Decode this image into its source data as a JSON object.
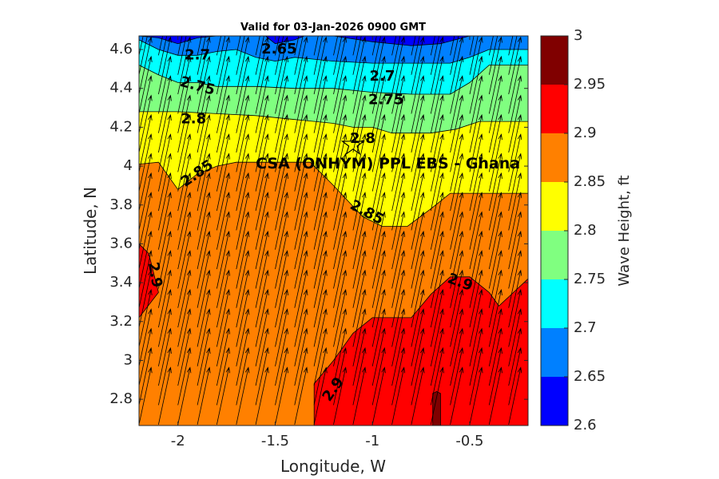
{
  "chart_data": {
    "type": "filled-contour",
    "title": "Valid for 03-Jan-2026 0900 GMT",
    "xlabel": "Longitude, W",
    "ylabel": "Latitude, N",
    "xlim": [
      -2.2,
      -0.2
    ],
    "ylim": [
      2.665,
      4.67
    ],
    "xticks": [
      -2,
      -1.5,
      -1,
      -0.5
    ],
    "xtick_labels": [
      "-2",
      "-1.5",
      "-1",
      "-0.5"
    ],
    "yticks": [
      2.8,
      3,
      3.2,
      3.4,
      3.6,
      3.8,
      4,
      4.2,
      4.4,
      4.6
    ],
    "ytick_labels": [
      "2.8",
      "3",
      "3.2",
      "3.4",
      "3.6",
      "3.8",
      "4",
      "4.2",
      "4.4",
      "4.6"
    ],
    "colorbar": {
      "label": "Wave Height, ft",
      "range": [
        2.6,
        3.0
      ],
      "ticks": [
        2.6,
        2.65,
        2.7,
        2.75,
        2.8,
        2.85,
        2.9,
        2.95,
        3
      ],
      "tick_labels": [
        "2.6",
        "2.65",
        "2.7",
        "2.75",
        "2.8",
        "2.85",
        "2.9",
        "2.95",
        "3"
      ],
      "levels": [
        {
          "min": 2.6,
          "max": 2.65,
          "color": "#0000ff"
        },
        {
          "min": 2.65,
          "max": 2.7,
          "color": "#0080ff"
        },
        {
          "min": 2.7,
          "max": 2.75,
          "color": "#00ffff"
        },
        {
          "min": 2.75,
          "max": 2.8,
          "color": "#80ff80"
        },
        {
          "min": 2.8,
          "max": 2.85,
          "color": "#ffff00"
        },
        {
          "min": 2.85,
          "max": 2.9,
          "color": "#ff8000"
        },
        {
          "min": 2.9,
          "max": 2.95,
          "color": "#ff0000"
        },
        {
          "min": 2.95,
          "max": 3.0,
          "color": "#800000"
        }
      ]
    },
    "regions": [
      {
        "level_min": 2.85,
        "level_max": 2.9,
        "color": "#ff8000",
        "points": [
          [
            -2.2,
            2.665
          ],
          [
            -0.2,
            2.665
          ],
          [
            -0.2,
            4.67
          ],
          [
            -2.2,
            4.67
          ]
        ]
      },
      {
        "level_min": 2.8,
        "level_max": 2.85,
        "color": "#ffff00",
        "points": [
          [
            -2.2,
            4.01
          ],
          [
            -2.1,
            4.02
          ],
          [
            -2.0,
            3.88
          ],
          [
            -1.9,
            3.96
          ],
          [
            -1.8,
            4.0
          ],
          [
            -1.7,
            4.02
          ],
          [
            -1.5,
            4.02
          ],
          [
            -1.32,
            4.02
          ],
          [
            -1.2,
            3.9
          ],
          [
            -1.05,
            3.74
          ],
          [
            -0.95,
            3.69
          ],
          [
            -0.82,
            3.69
          ],
          [
            -0.7,
            3.78
          ],
          [
            -0.6,
            3.86
          ],
          [
            -0.2,
            3.86
          ],
          [
            -0.2,
            4.67
          ],
          [
            -2.2,
            4.67
          ]
        ]
      },
      {
        "level_min": 2.75,
        "level_max": 2.8,
        "color": "#80ff80",
        "points": [
          [
            -2.2,
            4.28
          ],
          [
            -2.0,
            4.28
          ],
          [
            -1.8,
            4.27
          ],
          [
            -1.6,
            4.26
          ],
          [
            -1.4,
            4.24
          ],
          [
            -1.2,
            4.22
          ],
          [
            -1.1,
            4.2
          ],
          [
            -1.0,
            4.2
          ],
          [
            -0.9,
            4.17
          ],
          [
            -0.8,
            4.17
          ],
          [
            -0.7,
            4.17
          ],
          [
            -0.57,
            4.19
          ],
          [
            -0.45,
            4.23
          ],
          [
            -0.2,
            4.23
          ],
          [
            -0.2,
            4.67
          ],
          [
            -2.2,
            4.67
          ]
        ]
      },
      {
        "level_min": 2.7,
        "level_max": 2.75,
        "color": "#00ffff",
        "points": [
          [
            -2.2,
            4.52
          ],
          [
            -2.1,
            4.47
          ],
          [
            -2.0,
            4.43
          ],
          [
            -1.9,
            4.43
          ],
          [
            -1.8,
            4.41
          ],
          [
            -1.6,
            4.41
          ],
          [
            -1.4,
            4.4
          ],
          [
            -1.2,
            4.4
          ],
          [
            -1.0,
            4.38
          ],
          [
            -0.8,
            4.37
          ],
          [
            -0.6,
            4.37
          ],
          [
            -0.5,
            4.43
          ],
          [
            -0.4,
            4.52
          ],
          [
            -0.35,
            4.52
          ],
          [
            -0.2,
            4.52
          ],
          [
            -0.2,
            4.67
          ],
          [
            -2.2,
            4.67
          ]
        ]
      },
      {
        "level_min": 2.65,
        "level_max": 2.7,
        "color": "#0080ff",
        "points": [
          [
            -2.2,
            4.65
          ],
          [
            -2.1,
            4.6
          ],
          [
            -2.0,
            4.57
          ],
          [
            -1.9,
            4.57
          ],
          [
            -1.8,
            4.59
          ],
          [
            -1.7,
            4.6
          ],
          [
            -1.6,
            4.56
          ],
          [
            -1.5,
            4.54
          ],
          [
            -1.4,
            4.56
          ],
          [
            -1.2,
            4.54
          ],
          [
            -1.0,
            4.53
          ],
          [
            -0.8,
            4.53
          ],
          [
            -0.6,
            4.53
          ],
          [
            -0.5,
            4.56
          ],
          [
            -0.4,
            4.6
          ],
          [
            -0.35,
            4.6
          ],
          [
            -0.2,
            4.6
          ],
          [
            -0.2,
            4.67
          ],
          [
            -2.2,
            4.67
          ]
        ]
      },
      {
        "level_min": 2.6,
        "level_max": 2.65,
        "color": "#0000ff",
        "points": [
          [
            -2.2,
            4.67
          ],
          [
            -2.1,
            4.66
          ],
          [
            -2.0,
            4.63
          ],
          [
            -1.9,
            4.66
          ],
          [
            -1.8,
            4.67
          ]
        ]
      },
      {
        "level_min": 2.6,
        "level_max": 2.65,
        "color": "#0000ff",
        "points": [
          [
            -1.55,
            4.67
          ],
          [
            -1.5,
            4.63
          ],
          [
            -1.4,
            4.65
          ],
          [
            -1.35,
            4.67
          ]
        ]
      },
      {
        "level_min": 2.6,
        "level_max": 2.65,
        "color": "#0000ff",
        "points": [
          [
            -1.2,
            4.67
          ],
          [
            -1.0,
            4.64
          ],
          [
            -0.8,
            4.62
          ],
          [
            -0.65,
            4.63
          ],
          [
            -0.5,
            4.67
          ]
        ]
      },
      {
        "level_min": 2.9,
        "level_max": 2.95,
        "color": "#ff0000",
        "points": [
          [
            -1.3,
            2.665
          ],
          [
            -1.3,
            2.88
          ],
          [
            -1.2,
            3.0
          ],
          [
            -1.1,
            3.14
          ],
          [
            -1.0,
            3.22
          ],
          [
            -0.8,
            3.22
          ],
          [
            -0.7,
            3.34
          ],
          [
            -0.6,
            3.43
          ],
          [
            -0.5,
            3.43
          ],
          [
            -0.4,
            3.35
          ],
          [
            -0.35,
            3.28
          ],
          [
            -0.2,
            3.42
          ],
          [
            -0.2,
            2.665
          ]
        ]
      },
      {
        "level_min": 2.9,
        "level_max": 2.95,
        "color": "#ff0000",
        "points": [
          [
            -2.2,
            3.6
          ],
          [
            -2.15,
            3.55
          ],
          [
            -2.1,
            3.35
          ],
          [
            -2.2,
            3.22
          ]
        ]
      },
      {
        "level_min": 2.95,
        "level_max": 3.0,
        "color": "#800000",
        "points": [
          [
            -0.69,
            2.665
          ],
          [
            -0.69,
            2.83
          ],
          [
            -0.67,
            2.84
          ],
          [
            -0.65,
            2.83
          ],
          [
            -0.65,
            2.665
          ]
        ]
      }
    ],
    "contour_labels": [
      {
        "value": "2.65",
        "lon": -1.48,
        "lat": 4.6,
        "rotation": 0
      },
      {
        "value": "2.7",
        "lon": -1.9,
        "lat": 4.57,
        "rotation": 0
      },
      {
        "value": "2.7",
        "lon": -0.95,
        "lat": 4.46,
        "rotation": 0
      },
      {
        "value": "2.75",
        "lon": -1.9,
        "lat": 4.41,
        "rotation": 15
      },
      {
        "value": "2.75",
        "lon": -0.93,
        "lat": 4.34,
        "rotation": 0
      },
      {
        "value": "2.8",
        "lon": -1.92,
        "lat": 4.24,
        "rotation": 0
      },
      {
        "value": "2.8",
        "lon": -1.05,
        "lat": 4.14,
        "rotation": 0
      },
      {
        "value": "2.85",
        "lon": -1.9,
        "lat": 3.96,
        "rotation": -35
      },
      {
        "value": "2.85",
        "lon": -1.03,
        "lat": 3.76,
        "rotation": 28
      },
      {
        "value": "2.9",
        "lon": -2.12,
        "lat": 3.44,
        "rotation": 80
      },
      {
        "value": "2.9",
        "lon": -0.55,
        "lat": 3.4,
        "rotation": 20
      },
      {
        "value": "2.9",
        "lon": -1.2,
        "lat": 2.85,
        "rotation": -55
      }
    ],
    "annotations": [
      {
        "type": "star-marker",
        "lon": -1.1,
        "lat": 4.11
      },
      {
        "type": "text",
        "text": "CSA (ONHYM) PPL EBS  - Ghana",
        "lon": -1.6,
        "lat": 4.01
      }
    ],
    "vector_field": {
      "description": "wave direction arrows, pointing roughly north-north-east",
      "lon_start": -2.2,
      "lon_step": 0.1,
      "lon_count": 21,
      "lat_start": 2.67,
      "lat_step": 0.1,
      "lat_count": 20,
      "direction_deg_from_north": 12,
      "length_deg_lat": 0.3
    }
  }
}
